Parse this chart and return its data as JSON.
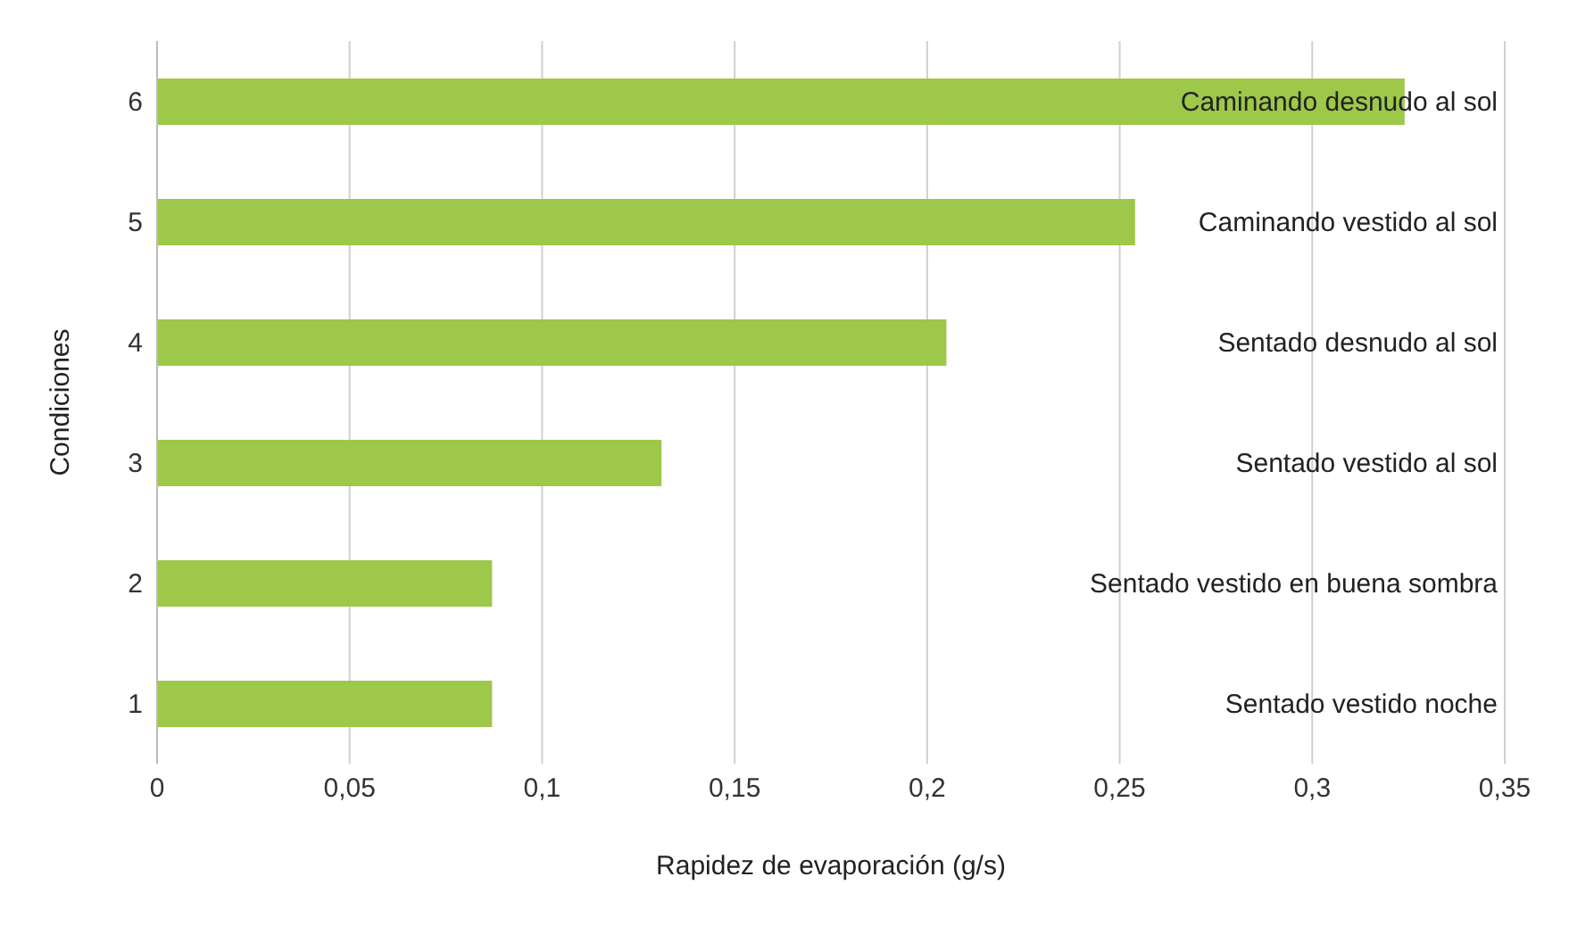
{
  "chart_data": {
    "type": "bar",
    "orientation": "horizontal",
    "xlabel": "Rapidez de evaporación (g/s)",
    "ylabel": "Condiciones",
    "categories": [
      "6",
      "5",
      "4",
      "3",
      "2",
      "1"
    ],
    "values": [
      0.324,
      0.254,
      0.205,
      0.131,
      0.087,
      0.087
    ],
    "color": "#9dc84a",
    "xlim": [
      0,
      0.35
    ],
    "xticks": [
      0,
      {
        "value": 0.05,
        "label": "0,05"
      },
      {
        "value": 0.1,
        "label": "0,1"
      },
      {
        "value": 0.15,
        "label": "0,15"
      },
      {
        "value": 0.2,
        "label": "0,2"
      },
      {
        "value": 0.25,
        "label": "0,25"
      },
      {
        "value": 0.3,
        "label": "0,3"
      },
      {
        "value": 0.35,
        "label": "0,35"
      }
    ],
    "grid": "x",
    "annotations": [
      "Caminando desnudo al sol",
      "Caminando vestido al sol",
      "Sentado desnudo al sol",
      "Sentado vestido al sol",
      "Sentado vestido en buena sombra",
      "Sentado vestido noche"
    ]
  }
}
